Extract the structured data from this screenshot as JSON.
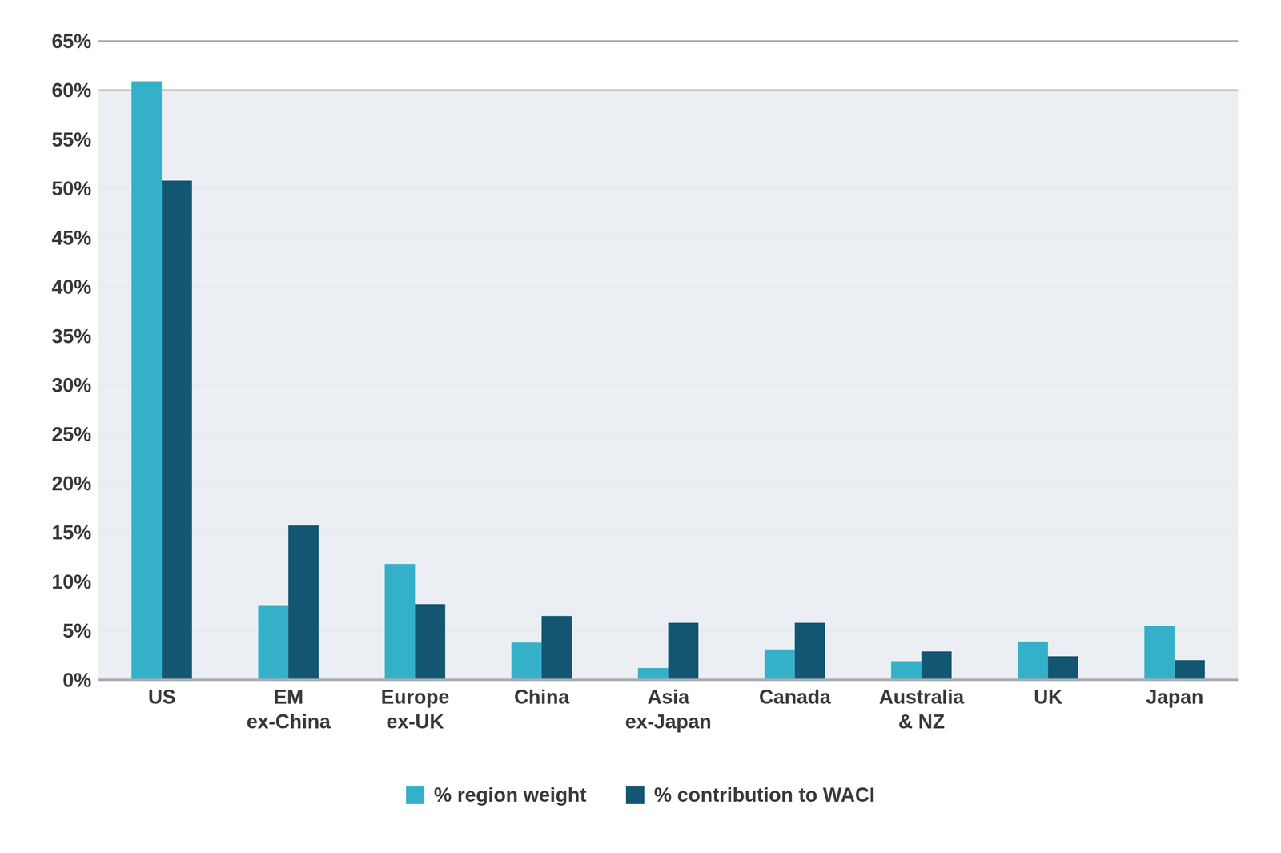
{
  "chart_data": {
    "type": "bar",
    "categories": [
      "US",
      "EM ex-China",
      "Europe ex-UK",
      "China",
      "Asia ex-Japan",
      "Canada",
      "Australia & NZ",
      "UK",
      "Japan"
    ],
    "series": [
      {
        "name": "% region weight",
        "color": "#35b0c9",
        "values": [
          60.9,
          7.6,
          11.8,
          3.8,
          1.2,
          3.1,
          1.9,
          3.9,
          5.5
        ]
      },
      {
        "name": "% contribution to WACI",
        "color": "#135672",
        "values": [
          50.8,
          15.7,
          7.7,
          6.5,
          5.8,
          5.8,
          2.9,
          2.4,
          2.0
        ]
      }
    ],
    "ylim": [
      0,
      65
    ],
    "yticks": [
      {
        "value": 0,
        "label": "0%"
      },
      {
        "value": 5,
        "label": "5%"
      },
      {
        "value": 10,
        "label": "10%"
      },
      {
        "value": 15,
        "label": "15%"
      },
      {
        "value": 20,
        "label": "20%"
      },
      {
        "value": 25,
        "label": "25%"
      },
      {
        "value": 30,
        "label": "30%"
      },
      {
        "value": 35,
        "label": "35%"
      },
      {
        "value": 40,
        "label": "40%"
      },
      {
        "value": 45,
        "label": "45%"
      },
      {
        "value": 50,
        "label": "50%"
      },
      {
        "value": 55,
        "label": "55%"
      },
      {
        "value": 60,
        "label": "60%"
      },
      {
        "value": 65,
        "label": "65%"
      }
    ],
    "grid": true,
    "legend": "bottom"
  }
}
